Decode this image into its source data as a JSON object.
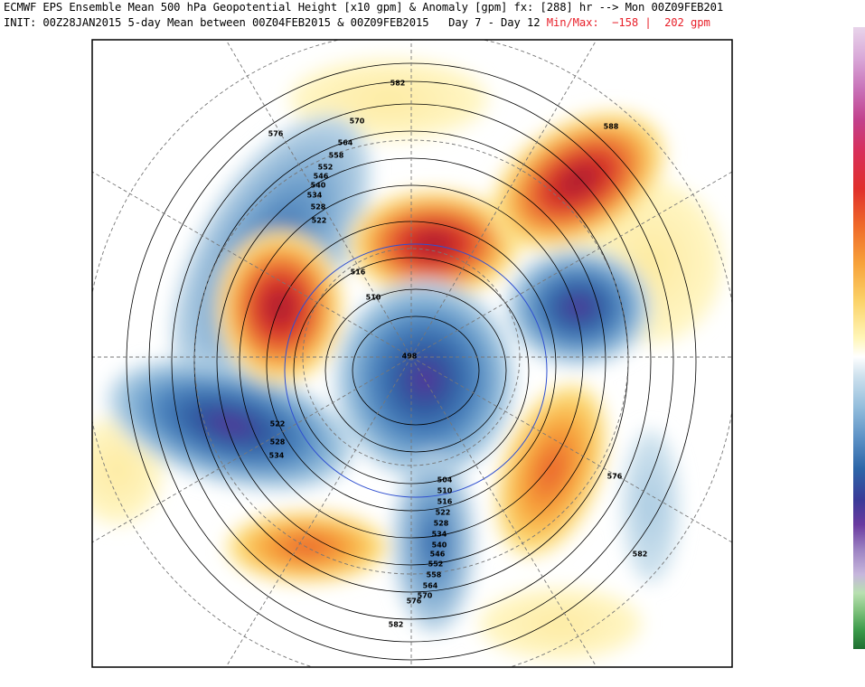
{
  "header": {
    "line1": "ECMWF EPS Ensemble Mean 500 hPa Geopotential Height [x10 gpm] & Anomaly [gpm] fx: [288] hr --> Mon 00Z09FEB201",
    "line2": "INIT: 00Z28JAN2015 5-day Mean between 00Z04FEB2015 & 00Z09FEB2015   Day 7 - Day 12",
    "minmax_label": "Min/Max:",
    "min": "−158",
    "max": "202 gpm"
  },
  "contour_labels": [
    "582",
    "570",
    "564",
    "558",
    "552",
    "546",
    "540",
    "534",
    "528",
    "522",
    "516",
    "510",
    "498",
    "576",
    "588",
    "522",
    "528",
    "534",
    "576",
    "582",
    "504",
    "510",
    "516",
    "522",
    "528",
    "534",
    "540",
    "546",
    "552",
    "558",
    "564",
    "570",
    "576",
    "582"
  ]
}
